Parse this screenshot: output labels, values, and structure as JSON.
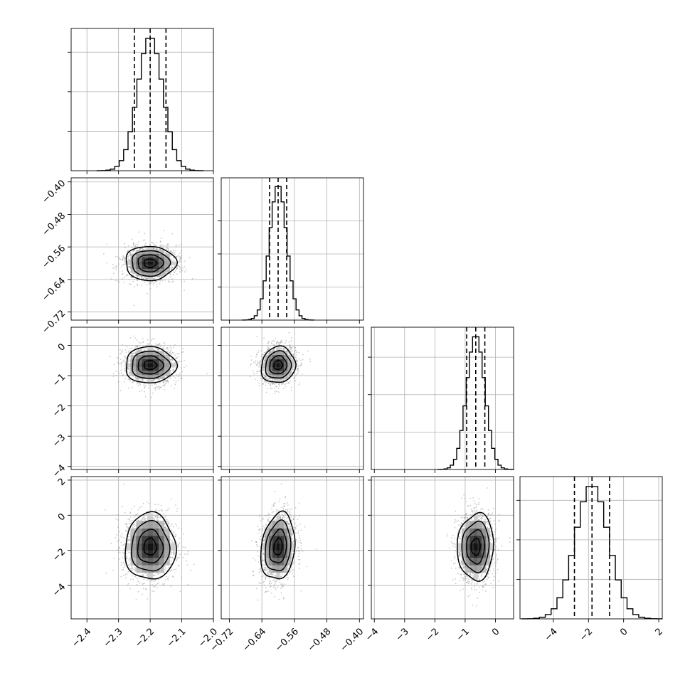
{
  "chart_data": {
    "type": "corner",
    "grid": true,
    "params": [
      {
        "range": [
          -2.45,
          -2.0
        ],
        "ticks": [
          {
            "v": -2.4,
            "label": "−2.4"
          },
          {
            "v": -2.3,
            "label": "−2.3"
          },
          {
            "v": -2.2,
            "label": "−2.2"
          },
          {
            "v": -2.1,
            "label": "−2.1"
          },
          {
            "v": -2.0,
            "label": "−2.0"
          }
        ],
        "mean": -2.2,
        "sd": 0.04,
        "quantiles": [
          -2.25,
          -2.2,
          -2.15
        ],
        "hist_max": 3.4
      },
      {
        "range": [
          -0.74,
          -0.39
        ],
        "ticks": [
          {
            "v": -0.72,
            "label": "−0.72"
          },
          {
            "v": -0.64,
            "label": "−0.64"
          },
          {
            "v": -0.56,
            "label": "−0.56"
          },
          {
            "v": -0.48,
            "label": "−0.48"
          },
          {
            "v": -0.4,
            "label": "−0.40"
          }
        ],
        "mean": -0.6,
        "sd": 0.021,
        "quantiles": [
          -0.621,
          -0.6,
          -0.579
        ],
        "hist_max": 4.1
      },
      {
        "range": [
          -4.1,
          0.6
        ],
        "ticks": [
          {
            "v": -4,
            "label": "−4"
          },
          {
            "v": -3,
            "label": "−3"
          },
          {
            "v": -2,
            "label": "−2"
          },
          {
            "v": -1,
            "label": "−1"
          },
          {
            "v": 0,
            "label": "0"
          }
        ],
        "mean": -0.65,
        "sd": 0.3,
        "quantiles": [
          -0.95,
          -0.65,
          -0.35
        ],
        "hist_max": 3.6
      },
      {
        "range": [
          -5.9,
          2.2
        ],
        "ticks": [
          {
            "v": -4,
            "label": "−4"
          },
          {
            "v": -2,
            "label": "−2"
          },
          {
            "v": 0,
            "label": "0"
          },
          {
            "v": 2,
            "label": "2"
          }
        ],
        "mean": -1.8,
        "sd": 0.95,
        "quantiles": [
          -2.8,
          -1.8,
          -0.8
        ],
        "hist_max": 3.4
      }
    ],
    "correlations": [
      [
        0,
        0
      ],
      [
        0.0,
        0
      ],
      [
        0.0,
        0.08,
        0
      ],
      [
        0.0,
        0.18,
        0.05,
        0
      ]
    ],
    "contour_levels_sigma": [
      0.5,
      1.0,
      1.5,
      2.0
    ]
  }
}
